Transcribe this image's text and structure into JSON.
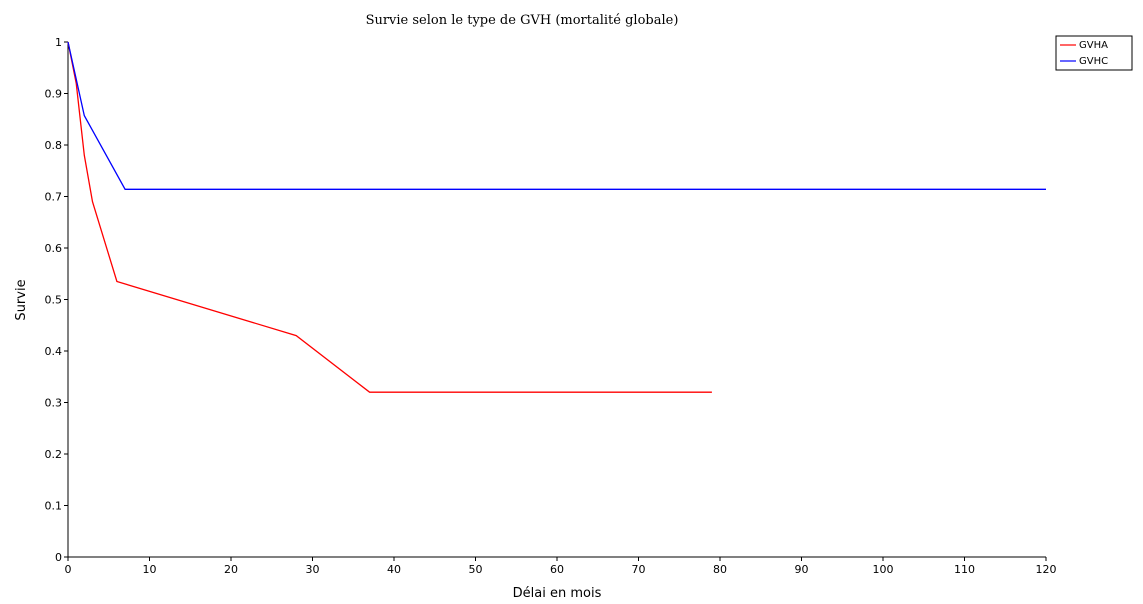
{
  "chart_data": {
    "type": "line",
    "title": "Survie selon le type de GVH (mortalité globale)",
    "xlabel": "Délai en mois",
    "ylabel": "Survie",
    "xlim": [
      0,
      120
    ],
    "ylim": [
      0,
      1
    ],
    "x_ticks": [
      "0",
      "10",
      "20",
      "30",
      "40",
      "50",
      "60",
      "70",
      "80",
      "90",
      "100",
      "110",
      "120"
    ],
    "y_ticks": [
      "0",
      "0.1",
      "0.2",
      "0.3",
      "0.4",
      "0.5",
      "0.6",
      "0.7",
      "0.8",
      "0.9",
      "1"
    ],
    "grid": false,
    "legend_position": "top-right",
    "series": [
      {
        "name": "GVHA",
        "color": "#ff0000",
        "x": [
          0,
          1,
          2,
          3,
          6,
          28,
          37,
          79
        ],
        "y": [
          1.0,
          0.92,
          0.78,
          0.69,
          0.535,
          0.43,
          0.32,
          0.32
        ]
      },
      {
        "name": "GVHC",
        "color": "#0000ff",
        "x": [
          0,
          2,
          7,
          120
        ],
        "y": [
          1.0,
          0.857,
          0.714,
          0.714
        ]
      }
    ]
  }
}
